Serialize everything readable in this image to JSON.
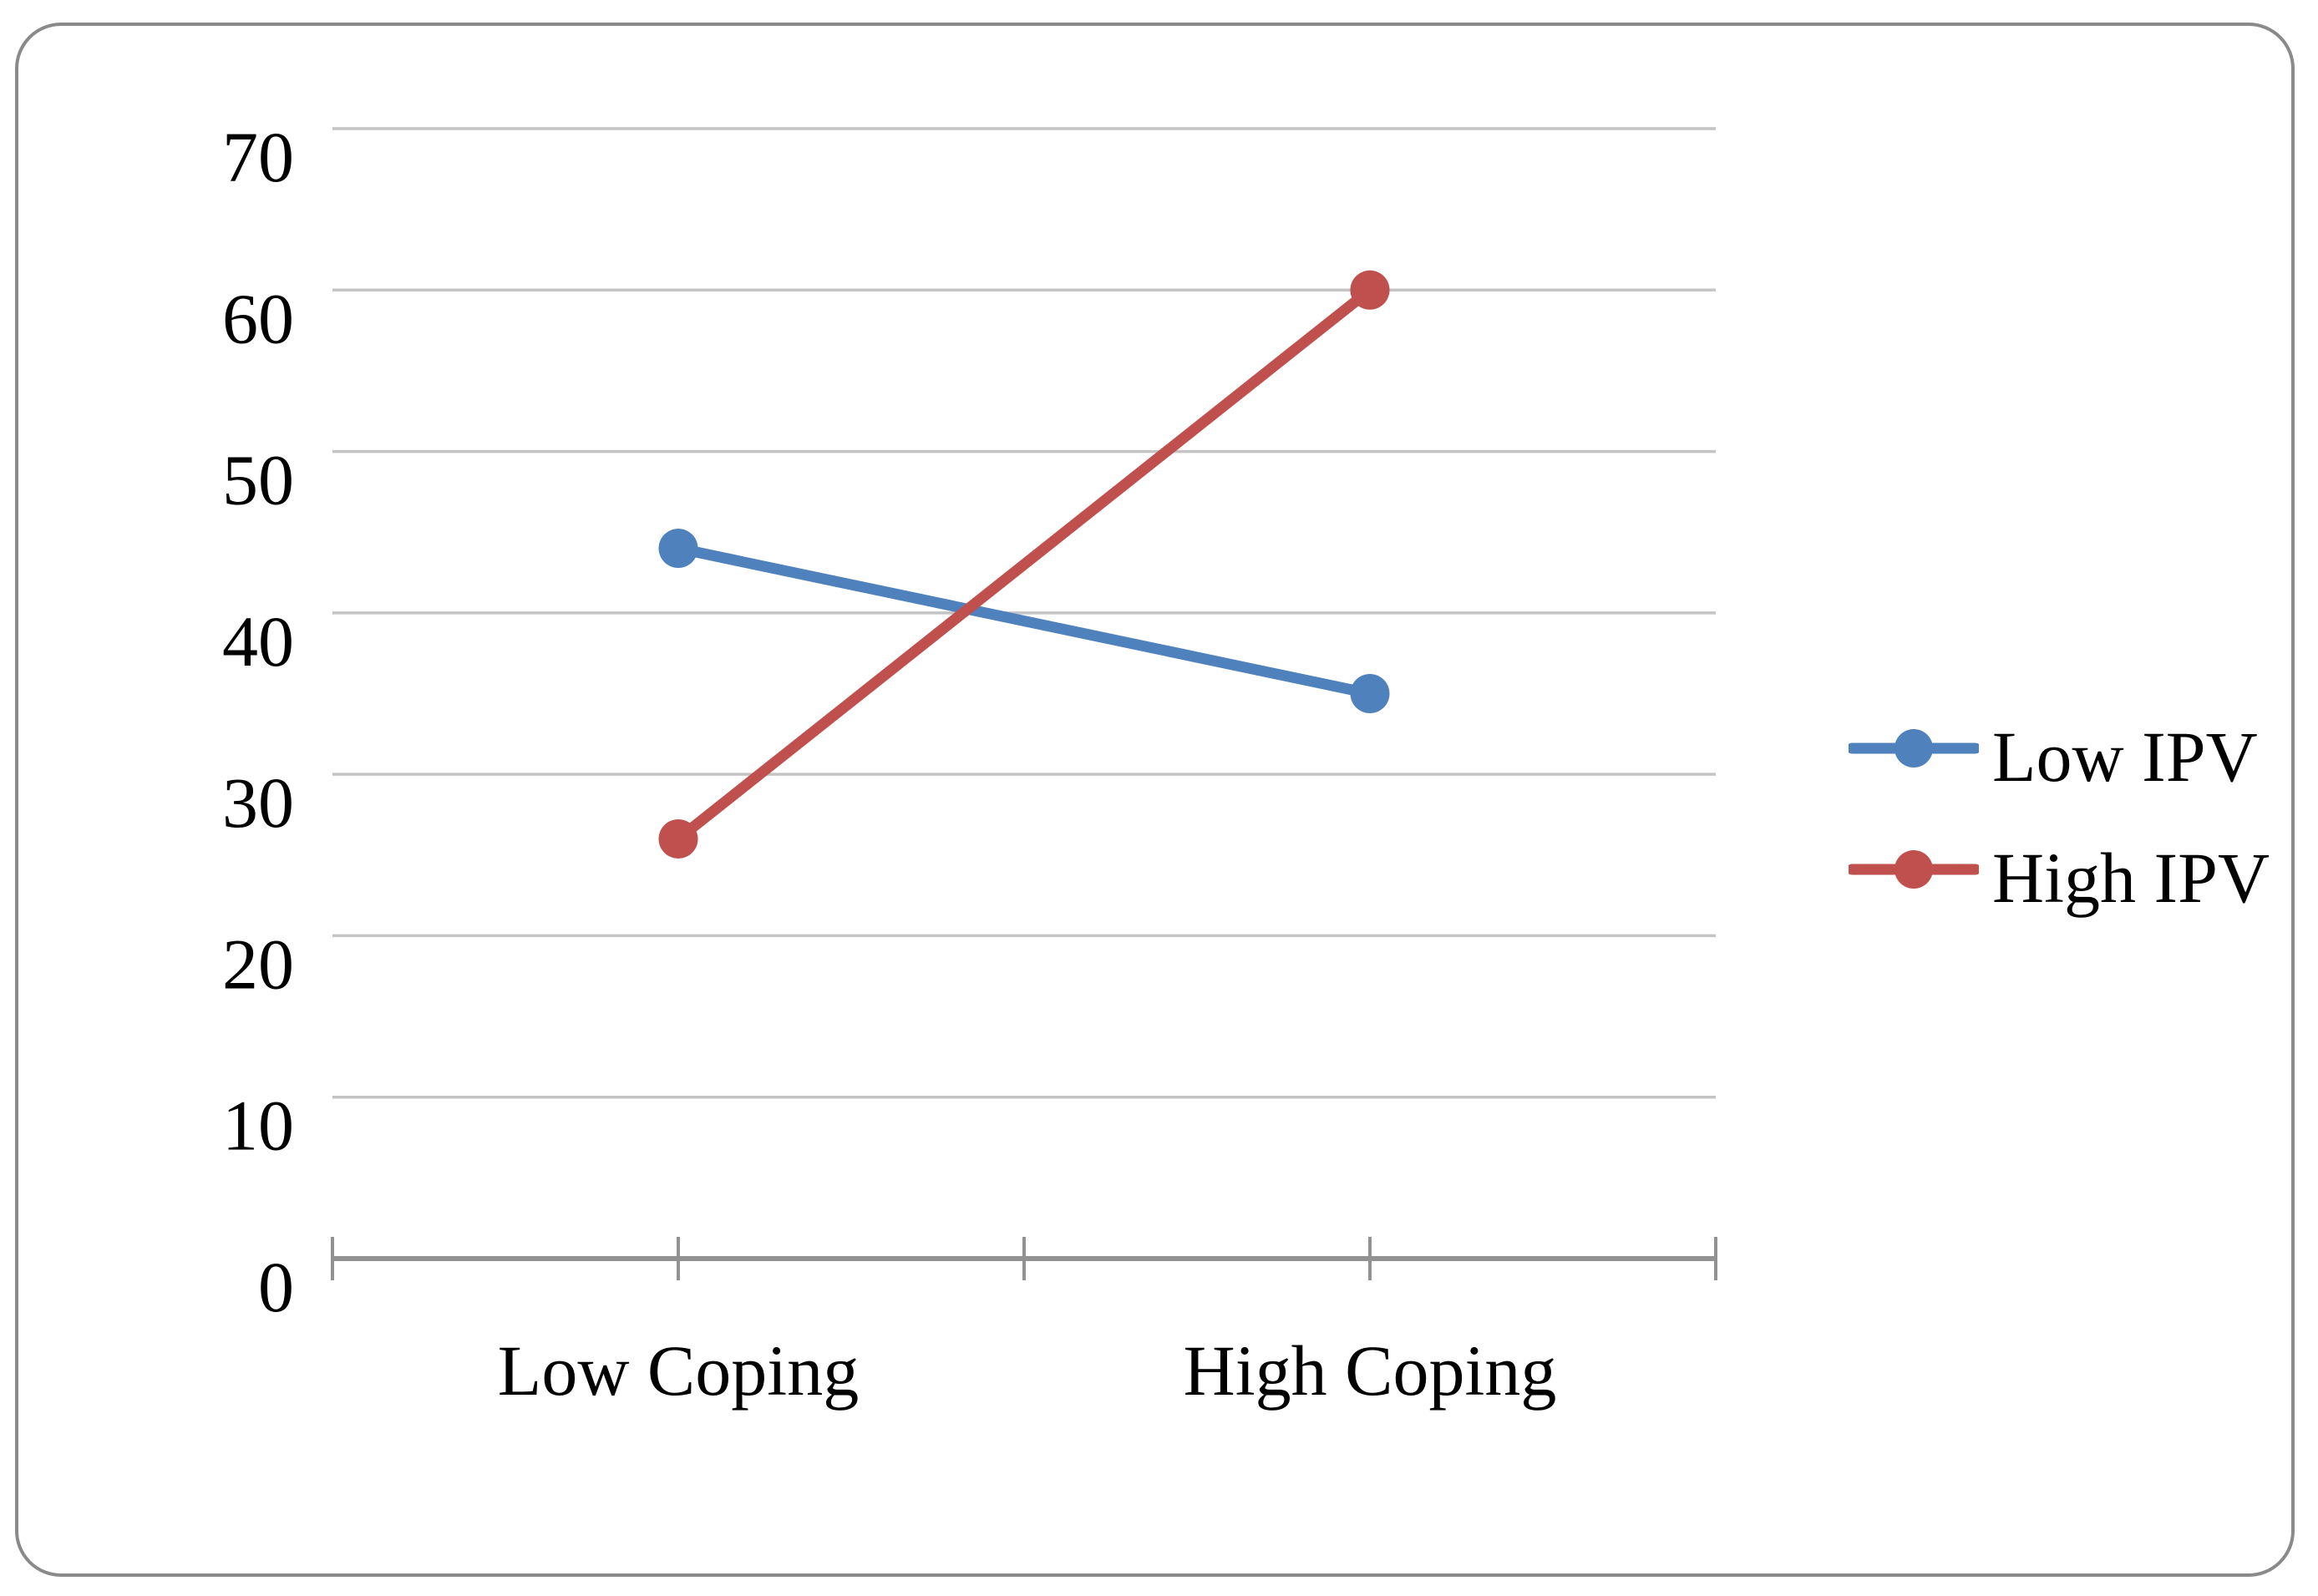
{
  "chart_data": {
    "type": "line",
    "categories": [
      "Low Coping",
      "High Coping"
    ],
    "series": [
      {
        "name": "Low IPV",
        "values": [
          44,
          35
        ],
        "color": "#4F81BD"
      },
      {
        "name": "High IPV",
        "values": [
          26,
          60
        ],
        "color": "#C0504D"
      }
    ],
    "title": "",
    "xlabel": "",
    "ylabel": "",
    "ylim": [
      0,
      70
    ],
    "yticks": [
      0,
      10,
      20,
      30,
      40,
      50,
      60,
      70
    ],
    "ytick_labels": [
      "0",
      "10",
      "20",
      "30",
      "40",
      "50",
      "60",
      "70"
    ],
    "grid": true,
    "marker": "circle",
    "legend_position": "right-center"
  },
  "legend": {
    "items": [
      {
        "label": "Low IPV"
      },
      {
        "label": "High IPV"
      }
    ]
  },
  "colors": {
    "series_blue": "#4F81BD",
    "series_red": "#C0504D",
    "gridline": "#C4C4C4",
    "axis": "#929292",
    "tick": "#929292",
    "frame_border": "#8A8A8A",
    "text": "#000000",
    "background": "#FFFFFF"
  }
}
